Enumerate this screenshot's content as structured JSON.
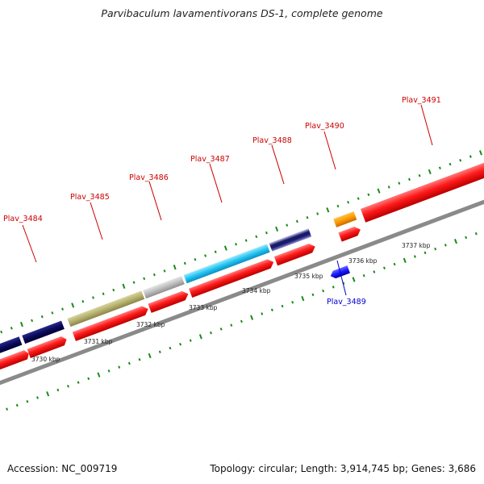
{
  "title": "Parvibaculum lavamentivorans DS-1, complete genome",
  "footer": {
    "accession": "Accession: NC_009719",
    "stats": "Topology: circular; Length: 3,914,745 bp; Genes: 3,686"
  },
  "colors": {
    "background": "#ffffff",
    "backbone": "#888888",
    "cds_red": "#ff1a1a",
    "forward_label": "#cc0000",
    "reverse_label": "#0000cc",
    "tick_green": "#1a8a1a"
  },
  "scale_ticks": [
    {
      "label": "3730 kbp",
      "kbp": 3730
    },
    {
      "label": "3731 kbp",
      "kbp": 3731
    },
    {
      "label": "3732 kbp",
      "kbp": 3732
    },
    {
      "label": "3733 kbp",
      "kbp": 3733
    },
    {
      "label": "3734 kbp",
      "kbp": 3734
    },
    {
      "label": "3735 kbp",
      "kbp": 3735
    },
    {
      "label": "3736 kbp",
      "kbp": 3736
    },
    {
      "label": "3737 kbp",
      "kbp": 3737
    }
  ],
  "genes": [
    {
      "name": "Plav_3484",
      "strand": "forward"
    },
    {
      "name": "Plav_3485",
      "strand": "forward"
    },
    {
      "name": "Plav_3486",
      "strand": "forward"
    },
    {
      "name": "Plav_3487",
      "strand": "forward"
    },
    {
      "name": "Plav_3488",
      "strand": "forward"
    },
    {
      "name": "Plav_3489",
      "strand": "reverse"
    },
    {
      "name": "Plav_3490",
      "strand": "forward"
    },
    {
      "name": "Plav_3491",
      "strand": "forward"
    }
  ]
}
